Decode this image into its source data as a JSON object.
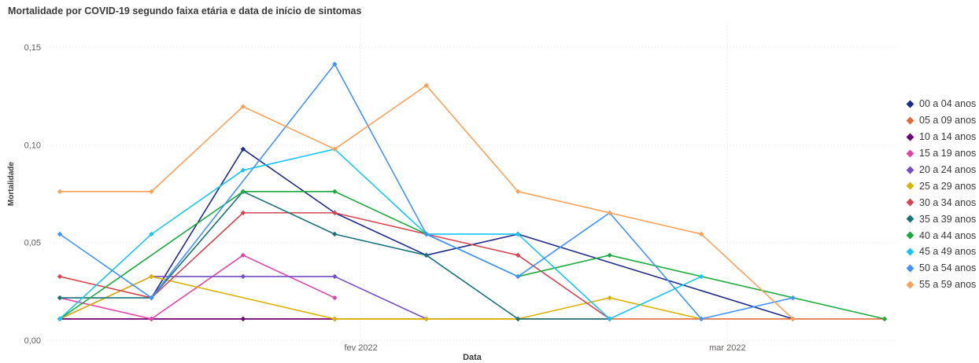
{
  "chart_data": {
    "type": "line",
    "title": "Mortalidade por COVID-19 segundo faixa etária e data de início de sintomas",
    "xlabel": "Data",
    "ylabel": "Mortalidade",
    "ylim": [
      0,
      0.15
    ],
    "yticks": [
      {
        "value": 0,
        "label": "0,00"
      },
      {
        "value": 0.05,
        "label": "0,05"
      },
      {
        "value": 0.1,
        "label": "0,10"
      },
      {
        "value": 0.15,
        "label": "0,15"
      }
    ],
    "x": [
      "2022-01-09",
      "2022-01-16",
      "2022-01-23",
      "2022-01-30",
      "2022-02-06",
      "2022-02-13",
      "2022-02-20",
      "2022-02-27",
      "2022-03-06",
      "2022-03-13"
    ],
    "xlim": [
      "2022-01-09",
      "2022-03-13"
    ],
    "xticks": [
      {
        "value": "2022-02-01",
        "label": "fev 2022"
      },
      {
        "value": "2022-03-01",
        "label": "mar 2022"
      }
    ],
    "grid": true,
    "legend_position": "right",
    "series": [
      {
        "name": "00 a 04 anos",
        "color": "#1f2a8c",
        "values": [
          null,
          0.0217,
          0.0978,
          0.0652,
          0.0435,
          0.0543,
          null,
          null,
          0.0109,
          null
        ]
      },
      {
        "name": "05 a 09 anos",
        "color": "#e66c37",
        "values": [
          0.0109,
          0.0109,
          0.0109,
          0.0109,
          0.0109,
          0.0109,
          0.0109,
          0.0109,
          0.0109,
          0.0109
        ]
      },
      {
        "name": "10 a 14 anos",
        "color": "#6b007b",
        "values": [
          0.0109,
          0.0109,
          0.0109,
          0.0109,
          null,
          null,
          null,
          null,
          null,
          null
        ]
      },
      {
        "name": "15 a 19 anos",
        "color": "#e044a7",
        "values": [
          0.0217,
          0.0109,
          0.0435,
          0.0217,
          null,
          null,
          null,
          null,
          null,
          null
        ]
      },
      {
        "name": "20 a 24 anos",
        "color": "#744ec2",
        "values": [
          0.0109,
          0.0326,
          0.0326,
          0.0326,
          0.0109,
          null,
          null,
          null,
          null,
          null
        ]
      },
      {
        "name": "25 a 29 anos",
        "color": "#d9b300",
        "values": [
          0.0109,
          0.0326,
          null,
          0.0109,
          0.0109,
          0.0109,
          0.0217,
          0.0109,
          null,
          null
        ]
      },
      {
        "name": "30 a 34 anos",
        "color": "#d64550",
        "values": [
          0.0326,
          0.0217,
          0.0652,
          0.0652,
          0.0543,
          0.0435,
          0.0109,
          null,
          null,
          null
        ]
      },
      {
        "name": "35 a 39 anos",
        "color": "#197278",
        "values": [
          0.0217,
          0.0217,
          0.0761,
          0.0543,
          0.0435,
          0.0109,
          0.0109,
          null,
          null,
          null
        ]
      },
      {
        "name": "40 a 44 anos",
        "color": "#1aab40",
        "values": [
          0.0109,
          null,
          0.0761,
          0.0761,
          0.0543,
          0.0326,
          0.0435,
          null,
          null,
          0.0109
        ]
      },
      {
        "name": "45 a 49 anos",
        "color": "#15c6f4",
        "values": [
          0.0109,
          0.0543,
          0.087,
          0.0978,
          0.0543,
          0.0543,
          0.0109,
          0.0326,
          null,
          null
        ]
      },
      {
        "name": "50 a 54 anos",
        "color": "#4092ff",
        "values": [
          0.0543,
          0.0217,
          null,
          0.1413,
          0.0543,
          0.0326,
          0.0652,
          0.0109,
          0.0217,
          null
        ]
      },
      {
        "name": "55 a 59 anos",
        "color": "#ffa058",
        "values": [
          0.0761,
          0.0761,
          0.1196,
          0.0978,
          0.1304,
          0.0761,
          0.0652,
          0.0543,
          0.0109,
          null
        ]
      }
    ]
  }
}
